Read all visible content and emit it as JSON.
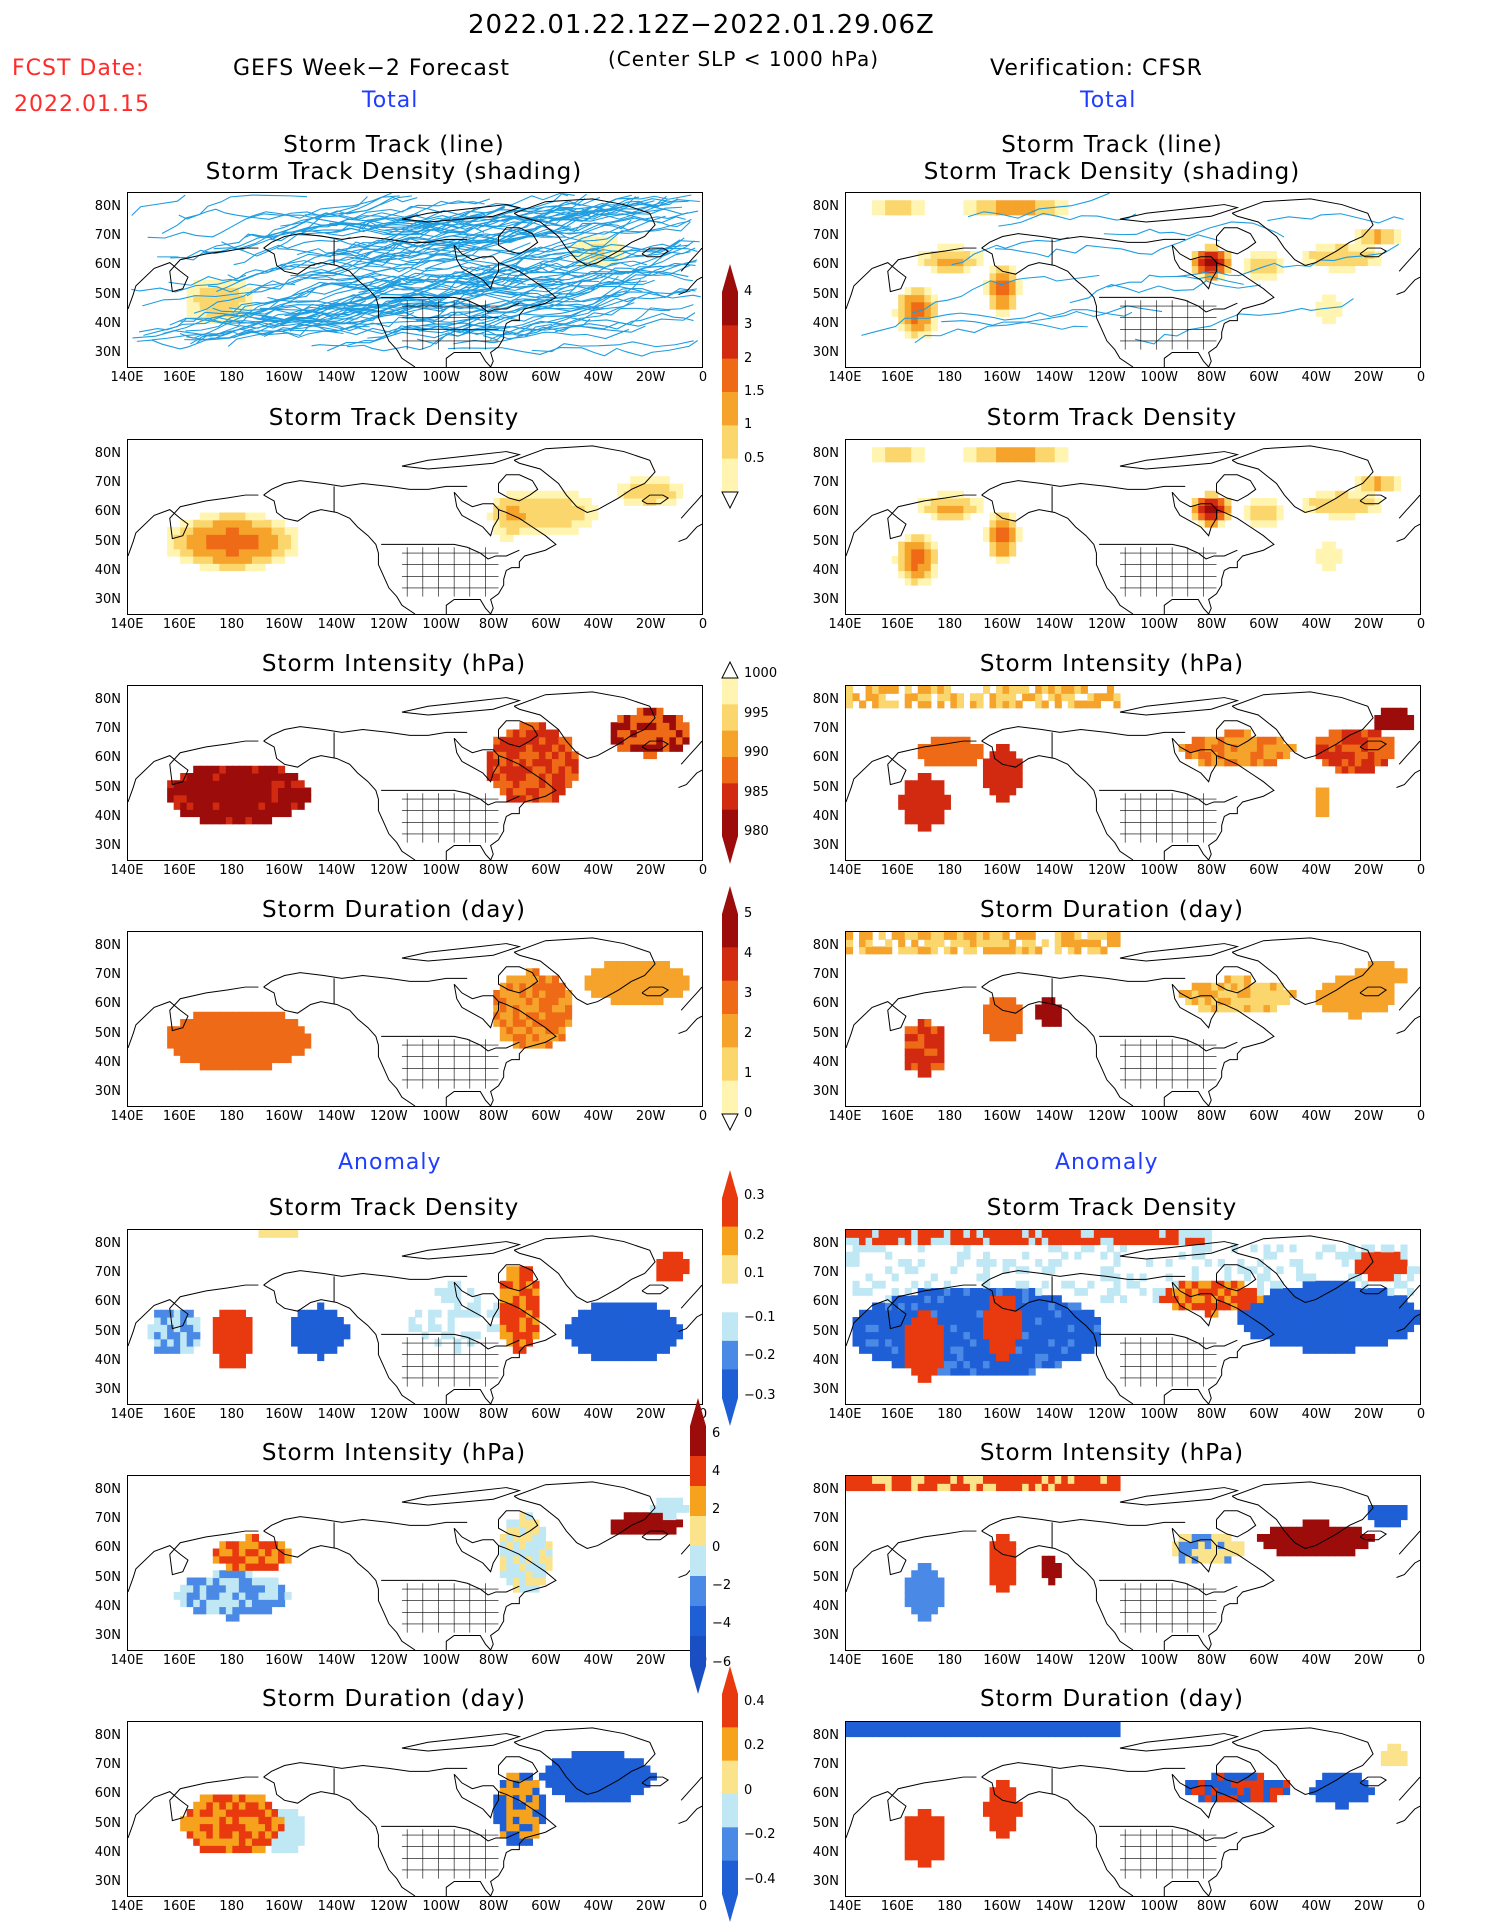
{
  "header": {
    "period": "2022.01.22.12Z−2022.01.29.06Z",
    "criterion": "(Center SLP < 1000 hPa)",
    "fcst_label": "FCST Date:",
    "fcst_date": "2022.01.15",
    "left_title": "GEFS Week−2 Forecast",
    "right_title": "Verification: CFSR",
    "total_label": "Total",
    "anomaly_label": "Anomaly"
  },
  "panel_titles": {
    "track": [
      "Storm Track (line)",
      "Storm Track Density (shading)"
    ],
    "density": "Storm Track Density",
    "intensity": "Storm Intensity (hPa)",
    "duration": "Storm Duration (day)"
  },
  "axes": {
    "lat_ticks": [
      "80N",
      "70N",
      "60N",
      "50N",
      "40N",
      "30N"
    ],
    "lon_ticks": [
      "140E",
      "160E",
      "180",
      "160W",
      "140W",
      "120W",
      "100W",
      "80W",
      "60W",
      "40W",
      "20W",
      "0"
    ]
  },
  "colors": {
    "c0": "#fff4b0",
    "c1": "#fbd66c",
    "c2": "#f5a32a",
    "c3": "#ee6a16",
    "c4": "#d22a10",
    "c5": "#9c0c0a",
    "a_neg3": "#1e5fd6",
    "a_neg2": "#4a8ae6",
    "a_neg1": "#bfe8f4",
    "a_pos1": "#fbe38c",
    "a_pos2": "#f6a21c",
    "a_pos3": "#e83a0e",
    "track_line": "#1e9de0"
  },
  "colorbars": {
    "density": [
      "4",
      "3",
      "2",
      "1.5",
      "1",
      "0.5"
    ],
    "intensity": [
      "1000",
      "995",
      "990",
      "985",
      "980"
    ],
    "duration": [
      "5",
      "4",
      "3",
      "2",
      "1",
      "0"
    ],
    "anom_density": [
      "0.3",
      "0.2",
      "0.1",
      "−0.1",
      "−0.2",
      "−0.3"
    ],
    "anom_intensity": [
      "6",
      "4",
      "2",
      "0",
      "−2",
      "−4",
      "−6"
    ],
    "anom_duration": [
      "0.4",
      "0.2",
      "0",
      "−0.2",
      "−0.4"
    ]
  },
  "chart_data": [
    {
      "type": "heatmap",
      "panel": "forecast-total-track",
      "title": "Storm Track (line) Storm Track Density (shading)",
      "xlim": [
        "140E",
        "0"
      ],
      "ylim": [
        "25N",
        "85N"
      ],
      "note": "many ensemble storm tracks over North Pacific and North Atlantic"
    },
    {
      "type": "heatmap",
      "panel": "verification-total-track",
      "title": "Storm Track (line) Storm Track Density (shading)",
      "levels": [
        0.5,
        1,
        1.5,
        2,
        3,
        4
      ]
    },
    {
      "type": "heatmap",
      "panel": "forecast-total-density",
      "title": "Storm Track Density",
      "levels": [
        0.5,
        1,
        1.5,
        2,
        3,
        4
      ],
      "max_region": "central North Pacific ~180, 50N, value ~2"
    },
    {
      "type": "heatmap",
      "panel": "verification-total-density",
      "title": "Storm Track Density",
      "levels": [
        0.5,
        1,
        1.5,
        2,
        3,
        4
      ],
      "max_region": "Hudson Bay ~80W, 60N, value >4"
    },
    {
      "type": "heatmap",
      "panel": "forecast-total-intensity",
      "title": "Storm Intensity (hPa)",
      "levels": [
        980,
        985,
        990,
        995,
        1000
      ]
    },
    {
      "type": "heatmap",
      "panel": "verification-total-intensity",
      "title": "Storm Intensity (hPa)",
      "levels": [
        980,
        985,
        990,
        995,
        1000
      ]
    },
    {
      "type": "heatmap",
      "panel": "forecast-total-duration",
      "title": "Storm Duration (day)",
      "levels": [
        0,
        1,
        2,
        3,
        4,
        5
      ]
    },
    {
      "type": "heatmap",
      "panel": "verification-total-duration",
      "title": "Storm Duration (day)",
      "levels": [
        0,
        1,
        2,
        3,
        4,
        5
      ]
    },
    {
      "type": "heatmap",
      "panel": "forecast-anomaly-density",
      "title": "Storm Track Density",
      "levels": [
        -0.3,
        -0.2,
        -0.1,
        0.1,
        0.2,
        0.3
      ]
    },
    {
      "type": "heatmap",
      "panel": "verification-anomaly-density",
      "title": "Storm Track Density",
      "levels": [
        -0.3,
        -0.2,
        -0.1,
        0.1,
        0.2,
        0.3
      ]
    },
    {
      "type": "heatmap",
      "panel": "forecast-anomaly-intensity",
      "title": "Storm Intensity (hPa)",
      "levels": [
        -6,
        -4,
        -2,
        0,
        2,
        4,
        6
      ]
    },
    {
      "type": "heatmap",
      "panel": "verification-anomaly-intensity",
      "title": "Storm Intensity (hPa)",
      "levels": [
        -6,
        -4,
        -2,
        0,
        2,
        4,
        6
      ]
    },
    {
      "type": "heatmap",
      "panel": "forecast-anomaly-duration",
      "title": "Storm Duration (day)",
      "levels": [
        -0.4,
        -0.2,
        0,
        0.2,
        0.4
      ]
    },
    {
      "type": "heatmap",
      "panel": "verification-anomaly-duration",
      "title": "Storm Duration (day)",
      "levels": [
        -0.4,
        -0.2,
        0,
        0.2,
        0.4
      ]
    }
  ]
}
